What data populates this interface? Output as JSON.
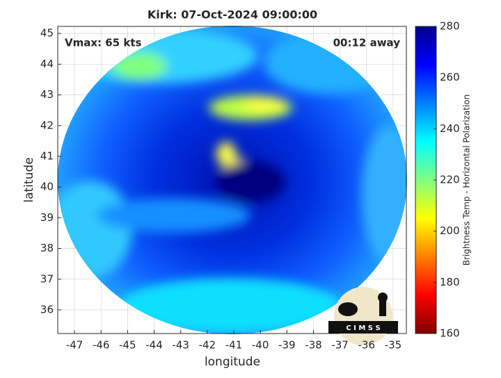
{
  "chart_data": {
    "type": "image",
    "title": "Kirk: 07-Oct-2024 09:00:00",
    "annotations": [
      "Vmax: 65 kts",
      "00:12 away"
    ],
    "xlabel": "longitude",
    "ylabel": "latitude",
    "xlim": [
      -47.63,
      -34.5
    ],
    "xticks": [
      -47,
      -46,
      -45,
      -44,
      -43,
      -42,
      -41,
      -40,
      -39,
      -38,
      -37,
      -36,
      -35
    ],
    "ylim": [
      35.23,
      45.23
    ],
    "yticks": [
      36,
      37,
      38,
      39,
      40,
      41,
      42,
      43,
      44,
      45
    ],
    "grid": true,
    "colorbar": {
      "label": "Brightness Temp - Horizontal Polarization",
      "clim": [
        160,
        280
      ],
      "ticks": [
        160,
        180,
        200,
        220,
        240,
        260,
        280
      ],
      "colormap": [
        "#800000",
        "#ff0000",
        "#ff8000",
        "#ffff00",
        "#80ff80",
        "#00ffff",
        "#0080ff",
        "#0000ff",
        "#00008f"
      ]
    },
    "logo": "C I M S S"
  }
}
